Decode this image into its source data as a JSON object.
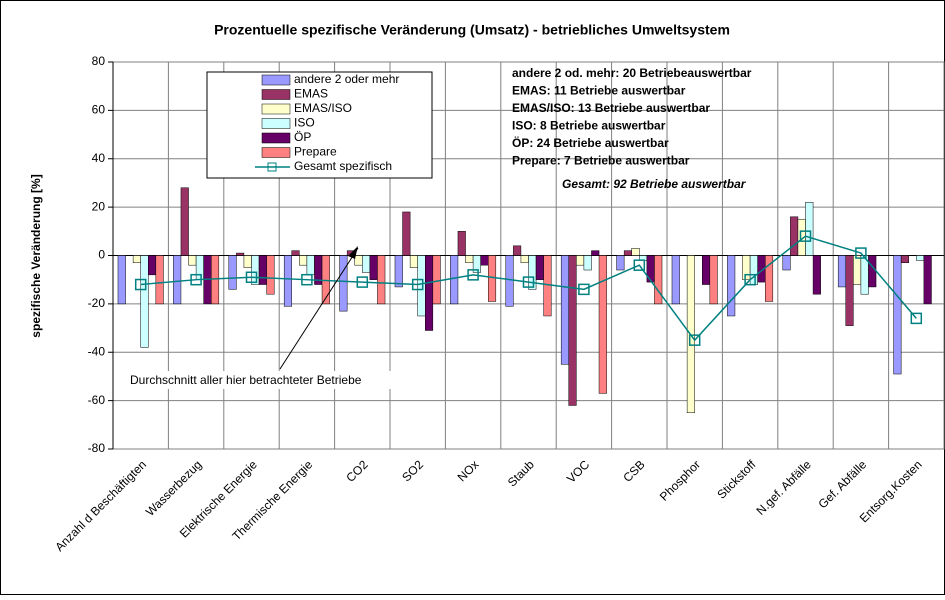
{
  "chart_data": {
    "type": "bar",
    "title": "Prozentuelle spezifische Veränderung  (Umsatz) - betriebliches Umweltsystem",
    "y_label": "spezifische Veränderung [%]",
    "categories": [
      "Anzahl d Beschäftigten",
      "Wasserbezug",
      "Elektrische Energie",
      "Thermische Energie",
      "CO2",
      "SO2",
      "NOx",
      "Staub",
      "VOC",
      "CSB",
      "Phosphor",
      "Stickstoff",
      "N.gef. Abfälle",
      "Gef. Abfälle",
      "Entsorg.Kosten"
    ],
    "series": [
      {
        "name": "andere 2 oder mehr",
        "color": "#9999ff",
        "type": "bar",
        "values": [
          -20,
          -20,
          -14,
          -21,
          -23,
          -13,
          -20,
          -21,
          -45,
          -6,
          -20,
          -25,
          -6,
          -13,
          -49
        ]
      },
      {
        "name": "EMAS",
        "color": "#993366",
        "type": "bar",
        "values": [
          0,
          28,
          1,
          2,
          2,
          18,
          10,
          4,
          -62,
          2,
          0,
          0,
          16,
          -29,
          -3
        ]
      },
      {
        "name": "EMAS/ISO",
        "color": "#ffffcc",
        "type": "bar",
        "values": [
          -3,
          -4,
          -5,
          -4,
          -4,
          -5,
          -3,
          -3,
          -4,
          3,
          -65,
          -10,
          15,
          -12,
          0
        ]
      },
      {
        "name": "ISO",
        "color": "#ccffff",
        "type": "bar",
        "values": [
          -38,
          -10,
          -12,
          -8,
          -7,
          -25,
          -7,
          -14,
          -6,
          -2,
          0,
          -12,
          22,
          -16,
          -2
        ]
      },
      {
        "name": "ÖP",
        "color": "#660066",
        "type": "bar",
        "values": [
          -8,
          -20,
          -12,
          -12,
          -10,
          -31,
          -4,
          -10,
          2,
          -11,
          -12,
          -11,
          -16,
          -13,
          -20
        ]
      },
      {
        "name": "Prepare",
        "color": "#ff8080",
        "type": "bar",
        "values": [
          -20,
          -20,
          -16,
          -20,
          -20,
          -20,
          -19,
          -25,
          -57,
          -20,
          -20,
          -19,
          0,
          0,
          0
        ]
      },
      {
        "name": "Gesamt spezifisch",
        "color": "#008080",
        "type": "line",
        "values": [
          -12,
          -10,
          -9,
          -10,
          -11,
          -12,
          -8,
          -11,
          -14,
          -4,
          -35,
          -10,
          8,
          1,
          -26
        ]
      }
    ],
    "ylim": [
      -80,
      80
    ],
    "yticks": [
      -80,
      -60,
      -40,
      -20,
      0,
      20,
      40,
      60,
      80
    ],
    "grid": true,
    "annotations": [
      "andere 2 od. mehr: 20 Betriebeauswertbar",
      "EMAS: 11 Betriebe auswertbar",
      "EMAS/ISO: 13 Betriebe auswertbar",
      "ISO: 8 Betriebe auswertbar",
      "ÖP: 24 Betriebe auswertbar",
      "Prepare: 7 Betriebe auswertbar"
    ],
    "total_note": "Gesamt: 92 Betriebe auswertbar",
    "arrow_note": "Durchschnitt aller hier betrachteter Betriebe"
  }
}
